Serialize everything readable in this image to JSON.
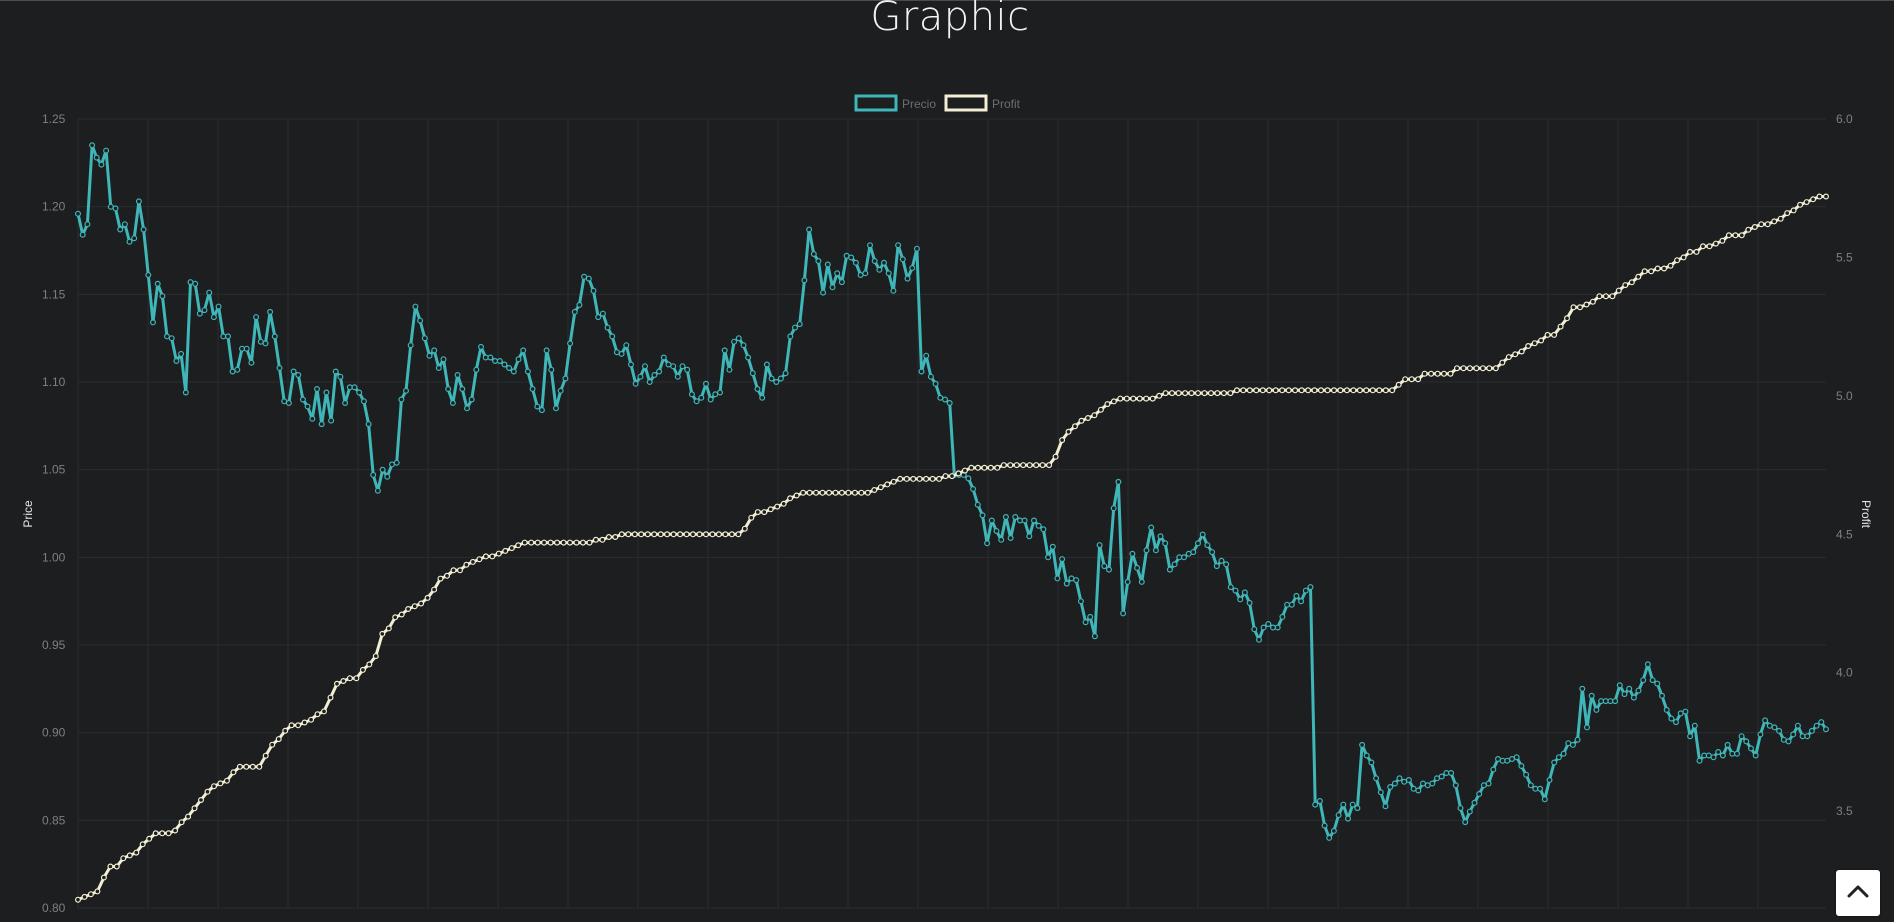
{
  "page": {
    "title": "Graphic"
  },
  "chart_data": {
    "type": "line",
    "title": "Graphic",
    "legend_position": "top-center",
    "grid": true,
    "y_left": {
      "label": "Price",
      "range": [
        0.8,
        1.25
      ],
      "ticks": [
        "1.25",
        "1.20",
        "1.15",
        "1.10",
        "1.05",
        "1.00",
        "0.95",
        "0.90",
        "0.85",
        "0.80"
      ]
    },
    "y_right": {
      "label": "Profit",
      "range": [
        3.15,
        6.0
      ],
      "ticks": [
        "6.0",
        "5.5",
        "5.0",
        "4.5",
        "4.0",
        "3.5"
      ]
    },
    "series": [
      {
        "name": "Precio",
        "axis": "left",
        "color": "#3fb6b8",
        "values": [
          1.196,
          1.184,
          1.19,
          1.235,
          1.228,
          1.224,
          1.232,
          1.2,
          1.199,
          1.187,
          1.19,
          1.18,
          1.182,
          1.203,
          1.187,
          1.161,
          1.134,
          1.156,
          1.149,
          1.126,
          1.125,
          1.112,
          1.116,
          1.094,
          1.157,
          1.156,
          1.139,
          1.141,
          1.151,
          1.137,
          1.143,
          1.126,
          1.126,
          1.106,
          1.107,
          1.119,
          1.119,
          1.111,
          1.137,
          1.123,
          1.122,
          1.14,
          1.126,
          1.108,
          1.089,
          1.088,
          1.106,
          1.104,
          1.09,
          1.086,
          1.079,
          1.096,
          1.076,
          1.094,
          1.078,
          1.106,
          1.103,
          1.088,
          1.097,
          1.097,
          1.094,
          1.089,
          1.076,
          1.047,
          1.038,
          1.05,
          1.046,
          1.053,
          1.054,
          1.09,
          1.095,
          1.121,
          1.143,
          1.135,
          1.125,
          1.115,
          1.118,
          1.108,
          1.113,
          1.096,
          1.088,
          1.104,
          1.096,
          1.085,
          1.09,
          1.107,
          1.12,
          1.114,
          1.114,
          1.112,
          1.112,
          1.11,
          1.108,
          1.106,
          1.113,
          1.118,
          1.106,
          1.096,
          1.086,
          1.084,
          1.118,
          1.107,
          1.085,
          1.095,
          1.102,
          1.122,
          1.14,
          1.144,
          1.16,
          1.159,
          1.152,
          1.137,
          1.139,
          1.131,
          1.126,
          1.117,
          1.116,
          1.121,
          1.11,
          1.099,
          1.103,
          1.109,
          1.1,
          1.104,
          1.106,
          1.114,
          1.11,
          1.109,
          1.103,
          1.109,
          1.107,
          1.093,
          1.089,
          1.091,
          1.099,
          1.09,
          1.093,
          1.094,
          1.118,
          1.107,
          1.123,
          1.125,
          1.121,
          1.114,
          1.105,
          1.096,
          1.091,
          1.11,
          1.102,
          1.1,
          1.102,
          1.105,
          1.126,
          1.131,
          1.133,
          1.158,
          1.187,
          1.173,
          1.169,
          1.151,
          1.167,
          1.154,
          1.162,
          1.157,
          1.172,
          1.171,
          1.168,
          1.161,
          1.162,
          1.178,
          1.169,
          1.164,
          1.168,
          1.162,
          1.152,
          1.178,
          1.17,
          1.159,
          1.165,
          1.176,
          1.106,
          1.115,
          1.103,
          1.099,
          1.091,
          1.09,
          1.088,
          1.047,
          1.047,
          1.047,
          1.045,
          1.039,
          1.03,
          1.024,
          1.008,
          1.021,
          1.015,
          1.01,
          1.023,
          1.011,
          1.023,
          1.021,
          1.021,
          1.012,
          1.021,
          1.018,
          1.016,
          1.0,
          1.006,
          0.988,
          0.999,
          0.985,
          0.988,
          0.987,
          0.975,
          0.963,
          0.966,
          0.955,
          1.007,
          0.995,
          0.993,
          1.028,
          1.043,
          0.968,
          0.986,
          1.002,
          0.994,
          0.986,
          1.004,
          1.017,
          1.004,
          1.012,
          1.008,
          0.993,
          0.996,
          1.0,
          1.0,
          1.002,
          1.003,
          1.008,
          1.013,
          1.007,
          1.003,
          0.995,
          0.998,
          0.996,
          0.983,
          0.981,
          0.976,
          0.98,
          0.974,
          0.959,
          0.953,
          0.96,
          0.962,
          0.96,
          0.96,
          0.966,
          0.973,
          0.973,
          0.978,
          0.975,
          0.981,
          0.983,
          0.859,
          0.861,
          0.847,
          0.84,
          0.844,
          0.853,
          0.859,
          0.851,
          0.859,
          0.857,
          0.893,
          0.887,
          0.883,
          0.874,
          0.866,
          0.858,
          0.869,
          0.871,
          0.874,
          0.872,
          0.873,
          0.868,
          0.867,
          0.871,
          0.87,
          0.871,
          0.874,
          0.875,
          0.877,
          0.877,
          0.87,
          0.857,
          0.849,
          0.855,
          0.86,
          0.865,
          0.87,
          0.871,
          0.879,
          0.885,
          0.884,
          0.884,
          0.885,
          0.886,
          0.881,
          0.876,
          0.87,
          0.868,
          0.868,
          0.862,
          0.873,
          0.883,
          0.886,
          0.888,
          0.894,
          0.893,
          0.896,
          0.925,
          0.903,
          0.921,
          0.913,
          0.918,
          0.918,
          0.918,
          0.918,
          0.927,
          0.922,
          0.925,
          0.92,
          0.924,
          0.93,
          0.939,
          0.93,
          0.928,
          0.921,
          0.913,
          0.908,
          0.906,
          0.911,
          0.912,
          0.898,
          0.904,
          0.884,
          0.887,
          0.887,
          0.886,
          0.889,
          0.887,
          0.893,
          0.888,
          0.888,
          0.898,
          0.895,
          0.891,
          0.887,
          0.899,
          0.907,
          0.904,
          0.903,
          0.901,
          0.896,
          0.895,
          0.899,
          0.904,
          0.898,
          0.898,
          0.901,
          0.904,
          0.906,
          0.902
        ]
      },
      {
        "name": "Profit",
        "axis": "right",
        "color": "#f3efd4",
        "values": [
          3.18,
          3.19,
          3.2,
          3.21,
          3.26,
          3.3,
          3.3,
          3.33,
          3.34,
          3.35,
          3.38,
          3.4,
          3.42,
          3.42,
          3.42,
          3.43,
          3.46,
          3.48,
          3.51,
          3.54,
          3.57,
          3.59,
          3.6,
          3.61,
          3.64,
          3.66,
          3.66,
          3.66,
          3.66,
          3.7,
          3.74,
          3.76,
          3.79,
          3.81,
          3.81,
          3.82,
          3.83,
          3.85,
          3.86,
          3.91,
          3.96,
          3.97,
          3.98,
          3.98,
          4.01,
          4.03,
          4.06,
          4.14,
          4.16,
          4.2,
          4.21,
          4.23,
          4.24,
          4.25,
          4.27,
          4.3,
          4.34,
          4.35,
          4.37,
          4.37,
          4.39,
          4.4,
          4.41,
          4.42,
          4.42,
          4.43,
          4.44,
          4.45,
          4.46,
          4.47,
          4.47,
          4.47,
          4.47,
          4.47,
          4.47,
          4.47,
          4.47,
          4.47,
          4.47,
          4.47,
          4.48,
          4.48,
          4.49,
          4.49,
          4.5,
          4.5,
          4.5,
          4.5,
          4.5,
          4.5,
          4.5,
          4.5,
          4.5,
          4.5,
          4.5,
          4.5,
          4.5,
          4.5,
          4.5,
          4.5,
          4.5,
          4.5,
          4.5,
          4.52,
          4.56,
          4.58,
          4.58,
          4.59,
          4.6,
          4.61,
          4.63,
          4.64,
          4.65,
          4.65,
          4.65,
          4.65,
          4.65,
          4.65,
          4.65,
          4.65,
          4.65,
          4.65,
          4.65,
          4.66,
          4.67,
          4.68,
          4.69,
          4.7,
          4.7,
          4.7,
          4.7,
          4.7,
          4.7,
          4.7,
          4.71,
          4.71,
          4.72,
          4.73,
          4.74,
          4.74,
          4.74,
          4.74,
          4.74,
          4.75,
          4.75,
          4.75,
          4.75,
          4.75,
          4.75,
          4.75,
          4.75,
          4.78,
          4.84,
          4.87,
          4.89,
          4.91,
          4.92,
          4.93,
          4.95,
          4.97,
          4.98,
          4.99,
          4.99,
          4.99,
          4.99,
          4.99,
          4.99,
          5.0,
          5.01,
          5.01,
          5.01,
          5.01,
          5.01,
          5.01,
          5.01,
          5.01,
          5.01,
          5.01,
          5.01,
          5.02,
          5.02,
          5.02,
          5.02,
          5.02,
          5.02,
          5.02,
          5.02,
          5.02,
          5.02,
          5.02,
          5.02,
          5.02,
          5.02,
          5.02,
          5.02,
          5.02,
          5.02,
          5.02,
          5.02,
          5.02,
          5.02,
          5.02,
          5.02,
          5.02,
          5.04,
          5.06,
          5.06,
          5.06,
          5.08,
          5.08,
          5.08,
          5.08,
          5.08,
          5.1,
          5.1,
          5.1,
          5.1,
          5.1,
          5.1,
          5.1,
          5.12,
          5.14,
          5.15,
          5.16,
          5.18,
          5.19,
          5.2,
          5.22,
          5.22,
          5.25,
          5.28,
          5.32,
          5.32,
          5.33,
          5.34,
          5.36,
          5.36,
          5.36,
          5.38,
          5.4,
          5.41,
          5.43,
          5.45,
          5.45,
          5.46,
          5.46,
          5.47,
          5.49,
          5.5,
          5.52,
          5.52,
          5.54,
          5.54,
          5.55,
          5.56,
          5.58,
          5.58,
          5.58,
          5.6,
          5.61,
          5.62,
          5.62,
          5.63,
          5.64,
          5.66,
          5.67,
          5.69,
          5.7,
          5.71,
          5.72,
          5.72
        ]
      }
    ]
  },
  "scroll_top": {
    "icon": "chevron-up-icon"
  }
}
